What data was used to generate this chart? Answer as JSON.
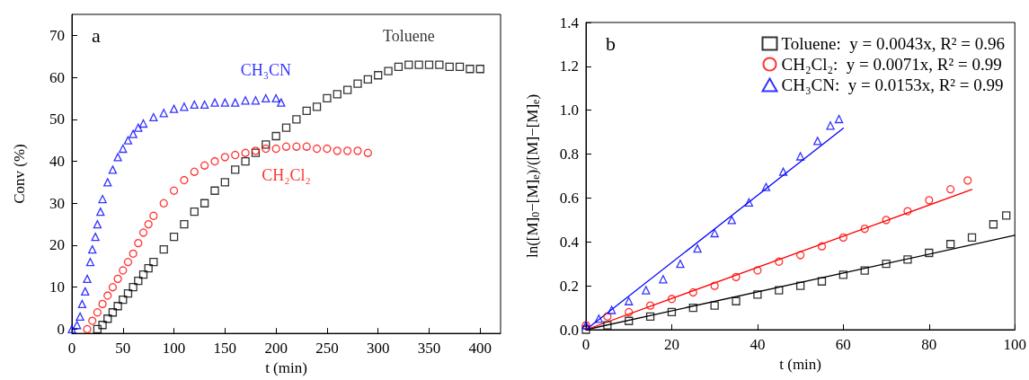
{
  "chart_data": [
    {
      "type": "scatter",
      "annotations": [
        "a"
      ],
      "xlabel": "t (min)",
      "ylabel": "Conv (%)",
      "xlim": [
        0,
        420
      ],
      "ylim": [
        -1,
        75
      ],
      "xticks": [
        0,
        50,
        100,
        150,
        200,
        250,
        300,
        350,
        400
      ],
      "yticks": [
        0,
        10,
        20,
        30,
        40,
        50,
        60,
        70
      ],
      "grid": false,
      "legend": false,
      "series": [
        {
          "name": "Toluene",
          "color": "#000000",
          "marker": "square",
          "x": [
            25,
            30,
            35,
            40,
            45,
            50,
            55,
            60,
            65,
            70,
            75,
            80,
            90,
            100,
            110,
            120,
            130,
            140,
            150,
            160,
            170,
            180,
            190,
            200,
            210,
            220,
            230,
            240,
            250,
            260,
            270,
            280,
            290,
            300,
            310,
            320,
            330,
            340,
            350,
            360,
            370,
            380,
            390,
            400
          ],
          "values": [
            0,
            1,
            2.5,
            4,
            5.5,
            7,
            8.5,
            10,
            11.5,
            13,
            14.5,
            16,
            19,
            22,
            25,
            28,
            30,
            33,
            35,
            38,
            40,
            42,
            44,
            46,
            48,
            50,
            52,
            53,
            55,
            56,
            57,
            58.5,
            59.5,
            60.5,
            61.5,
            62.5,
            63,
            63,
            63,
            63,
            62.5,
            62.5,
            62,
            62
          ]
        },
        {
          "name": "CH₂Cl₂",
          "color": "#ff0000",
          "marker": "circle",
          "x": [
            15,
            20,
            25,
            30,
            35,
            40,
            45,
            50,
            55,
            60,
            65,
            70,
            75,
            80,
            90,
            100,
            110,
            120,
            130,
            140,
            150,
            160,
            170,
            180,
            190,
            200,
            210,
            220,
            230,
            240,
            250,
            260,
            270,
            280,
            290
          ],
          "values": [
            0,
            2,
            4,
            6,
            8,
            10,
            12,
            14,
            16,
            18,
            20.5,
            23,
            25,
            27,
            30,
            33,
            35.5,
            37.5,
            39,
            40,
            41,
            41.5,
            42,
            42.5,
            43,
            43,
            43.5,
            43.5,
            43.5,
            43,
            43,
            42.5,
            42.5,
            42.5,
            42
          ]
        },
        {
          "name": "CH₃CN",
          "color": "#0000ff",
          "marker": "triangle",
          "x": [
            0,
            5,
            8,
            10,
            13,
            15,
            18,
            20,
            23,
            25,
            28,
            30,
            35,
            40,
            45,
            50,
            55,
            60,
            65,
            70,
            80,
            90,
            100,
            110,
            120,
            130,
            140,
            150,
            160,
            170,
            180,
            190,
            200,
            205
          ],
          "values": [
            0,
            1,
            3,
            6,
            9,
            12,
            16,
            19,
            22,
            25,
            28,
            31,
            35,
            38,
            41,
            43,
            45,
            46.5,
            48,
            49,
            50.5,
            51.5,
            52.5,
            53,
            53.5,
            53.5,
            54,
            54,
            54,
            54.5,
            54.5,
            55,
            55,
            54
          ]
        }
      ]
    },
    {
      "type": "scatter",
      "annotations": [
        "b"
      ],
      "xlabel": "t (min)",
      "ylabel": "ln([M]$_{0}$−[M]$_{e}$)/([M]−[M]$_{e}$)",
      "xlim": [
        0,
        100
      ],
      "ylim": [
        0,
        1.4
      ],
      "xticks": [
        0,
        20,
        40,
        60,
        80,
        100
      ],
      "yticks": [
        {
          "value": 0,
          "label": "0.0"
        },
        {
          "value": 0.2,
          "label": "0.2"
        },
        {
          "value": 0.4,
          "label": "0.4"
        },
        {
          "value": 0.6,
          "label": "0.6"
        },
        {
          "value": 0.8,
          "label": "0.8"
        },
        {
          "value": 1,
          "label": "1.0"
        },
        {
          "value": 1.2,
          "label": "1.2"
        },
        {
          "value": 1.4,
          "label": "1.4"
        }
      ],
      "grid": false,
      "legend": "top right",
      "series": [
        {
          "name": "Toluene:  y = 0.0043x, R² = 0.96",
          "color": "#000000",
          "marker": "square",
          "x": [
            0,
            5,
            10,
            15,
            20,
            25,
            30,
            35,
            40,
            45,
            50,
            55,
            60,
            65,
            70,
            75,
            80,
            85,
            90,
            95,
            98
          ],
          "values": [
            0,
            0.02,
            0.04,
            0.06,
            0.08,
            0.1,
            0.11,
            0.13,
            0.16,
            0.18,
            0.2,
            0.22,
            0.25,
            0.27,
            0.3,
            0.32,
            0.35,
            0.39,
            0.42,
            0.48,
            0.52
          ]
        },
        {
          "name": "CH₂Cl₂:  y = 0.0071x, R² = 0.99",
          "color": "#ff0000",
          "marker": "circle",
          "x": [
            0,
            5,
            10,
            15,
            20,
            25,
            30,
            35,
            40,
            45,
            50,
            55,
            60,
            65,
            70,
            75,
            80,
            85,
            89
          ],
          "values": [
            0.02,
            0.06,
            0.08,
            0.11,
            0.14,
            0.17,
            0.2,
            0.24,
            0.27,
            0.31,
            0.34,
            0.38,
            0.42,
            0.46,
            0.5,
            0.54,
            0.59,
            0.64,
            0.68
          ]
        },
        {
          "name": "CH₃CN:  y = 0.0153x, R² = 0.99",
          "color": "#0000ff",
          "marker": "triangle",
          "x": [
            0,
            3,
            6,
            10,
            14,
            18,
            22,
            26,
            30,
            34,
            38,
            42,
            46,
            50,
            54,
            57,
            59
          ],
          "values": [
            0.02,
            0.05,
            0.09,
            0.13,
            0.18,
            0.23,
            0.3,
            0.37,
            0.44,
            0.5,
            0.58,
            0.65,
            0.72,
            0.79,
            0.86,
            0.93,
            0.96
          ]
        },
        {
          "type": "line",
          "color": "#000000",
          "marker": "none",
          "x": [
            0,
            100
          ],
          "values": [
            0,
            0.43
          ]
        },
        {
          "type": "line",
          "color": "#ff0000",
          "marker": "none",
          "x": [
            0,
            90
          ],
          "values": [
            0,
            0.639
          ]
        },
        {
          "type": "line",
          "color": "#0000ff",
          "marker": "none",
          "x": [
            0,
            60
          ],
          "values": [
            0,
            0.918
          ]
        }
      ]
    }
  ]
}
